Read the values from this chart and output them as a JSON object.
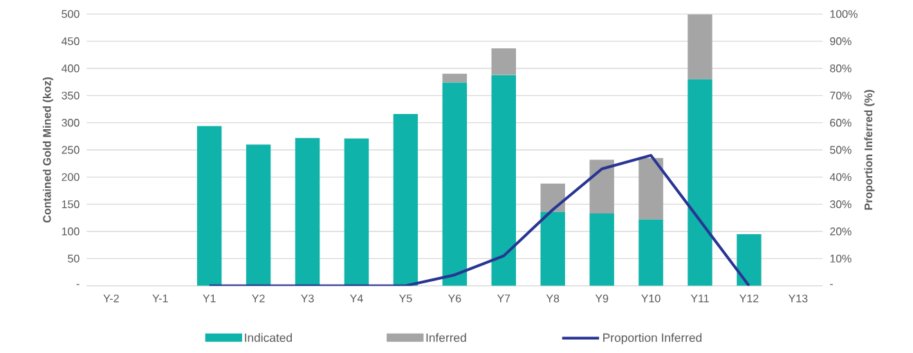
{
  "chart_data": {
    "type": "bar",
    "stacked": true,
    "ylabel": "Contained Gold Mined (koz)",
    "y2label": "Proportion Inferred (%)",
    "categories": [
      "Y-2",
      "Y-1",
      "Y1",
      "Y2",
      "Y3",
      "Y4",
      "Y5",
      "Y6",
      "Y7",
      "Y8",
      "Y9",
      "Y10",
      "Y11",
      "Y12",
      "Y13"
    ],
    "series": [
      {
        "name": "Indicated",
        "color": "#0fb3a9",
        "values": [
          null,
          null,
          294,
          260,
          272,
          271,
          316,
          374,
          388,
          136,
          133,
          122,
          380,
          95,
          null
        ]
      },
      {
        "name": "Inferred",
        "color": "#a5a5a5",
        "values": [
          null,
          null,
          0,
          0,
          0,
          0,
          0,
          16,
          49,
          52,
          99,
          113,
          119,
          0,
          null
        ]
      },
      {
        "name": "Proportion Inferred",
        "type": "line",
        "axis": "y2",
        "color": "#283593",
        "values": [
          null,
          null,
          0,
          0,
          0,
          0,
          0,
          4,
          11,
          28,
          43,
          48,
          24,
          0,
          null
        ]
      }
    ],
    "ylim": [
      0,
      500
    ],
    "yticks": [
      {
        "value": 0,
        "label": "-"
      },
      50,
      100,
      150,
      200,
      250,
      300,
      350,
      400,
      450,
      500
    ],
    "y2lim": [
      0,
      100
    ],
    "y2ticks": [
      {
        "value": 0,
        "label": "-"
      },
      {
        "value": 10,
        "label": "10%"
      },
      {
        "value": 20,
        "label": "20%"
      },
      {
        "value": 30,
        "label": "30%"
      },
      {
        "value": 40,
        "label": "40%"
      },
      {
        "value": 50,
        "label": "50%"
      },
      {
        "value": 60,
        "label": "60%"
      },
      {
        "value": 70,
        "label": "70%"
      },
      {
        "value": 80,
        "label": "80%"
      },
      {
        "value": 90,
        "label": "90%"
      },
      {
        "value": 100,
        "label": "100%"
      }
    ],
    "grid": "y",
    "legend": "bottom"
  }
}
